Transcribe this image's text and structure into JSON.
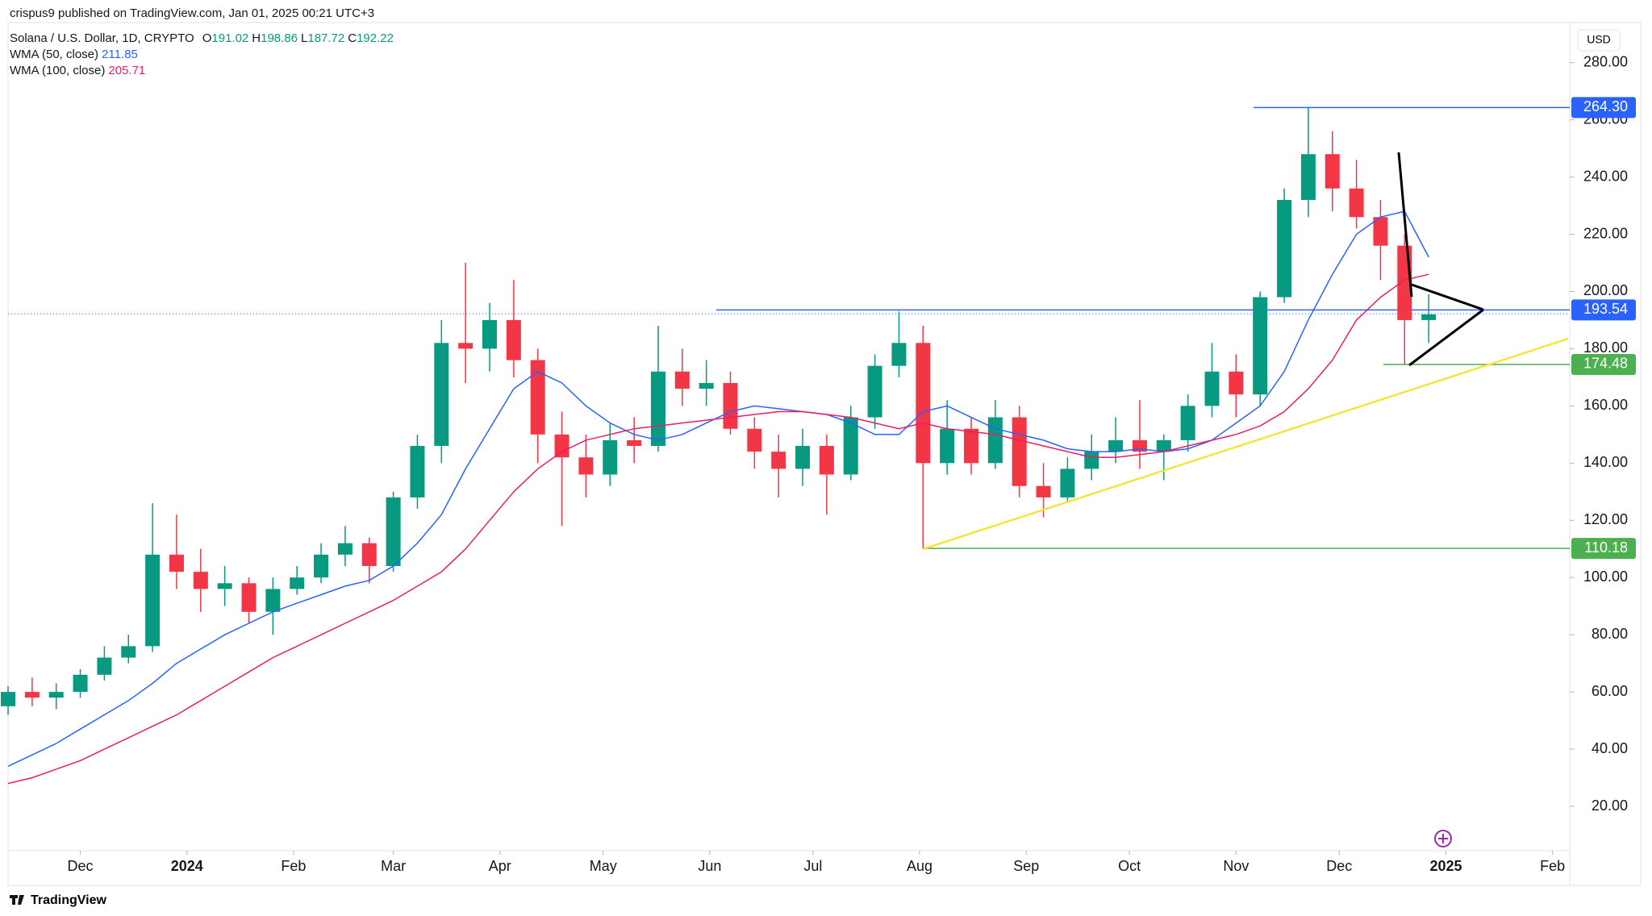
{
  "header": {
    "publisher": "crispus9 published on TradingView.com, Jan 01, 2025 00:21 UTC+3"
  },
  "chart_data": {
    "type": "candlestick",
    "title": "Solana / U.S. Dollar, 1D, CRYPTO",
    "ohlc_legend": [
      {
        "label": "O",
        "value": 191.02
      },
      {
        "label": "H",
        "value": 198.86
      },
      {
        "label": "L",
        "value": 187.72
      },
      {
        "label": "C",
        "value": 192.22
      }
    ],
    "currency": "USD",
    "up_color": "#089981",
    "down_color": "#f23645",
    "candles": {
      "x": [
        "2023-11-10",
        "2023-11-17",
        "2023-11-24",
        "2023-12-01",
        "2023-12-08",
        "2023-12-15",
        "2023-12-22",
        "2023-12-29",
        "2024-01-05",
        "2024-01-12",
        "2024-01-19",
        "2024-01-26",
        "2024-02-02",
        "2024-02-09",
        "2024-02-16",
        "2024-02-23",
        "2024-03-01",
        "2024-03-08",
        "2024-03-15",
        "2024-03-22",
        "2024-03-29",
        "2024-04-05",
        "2024-04-12",
        "2024-04-19",
        "2024-04-26",
        "2024-05-03",
        "2024-05-10",
        "2024-05-17",
        "2024-05-24",
        "2024-05-31",
        "2024-06-07",
        "2024-06-14",
        "2024-06-21",
        "2024-06-28",
        "2024-07-05",
        "2024-07-12",
        "2024-07-19",
        "2024-07-26",
        "2024-08-02",
        "2024-08-09",
        "2024-08-16",
        "2024-08-23",
        "2024-08-30",
        "2024-09-06",
        "2024-09-13",
        "2024-09-20",
        "2024-09-27",
        "2024-10-04",
        "2024-10-11",
        "2024-10-18",
        "2024-10-25",
        "2024-11-01",
        "2024-11-08",
        "2024-11-15",
        "2024-11-22",
        "2024-11-29",
        "2024-12-06",
        "2024-12-13",
        "2024-12-20",
        "2024-12-27"
      ],
      "open": [
        55,
        60,
        58,
        60,
        66,
        72,
        76,
        108,
        102,
        96,
        98,
        88,
        96,
        100,
        108,
        112,
        104,
        128,
        146,
        182,
        180,
        190,
        176,
        150,
        142,
        136,
        148,
        146,
        172,
        166,
        168,
        152,
        144,
        138,
        146,
        136,
        156,
        174,
        182,
        140,
        152,
        140,
        156,
        132,
        128,
        138,
        144,
        148,
        144,
        148,
        160,
        172,
        164,
        198,
        232,
        248,
        236,
        226,
        216,
        190
      ],
      "high": [
        62,
        65,
        63,
        68,
        76,
        80,
        126,
        122,
        110,
        104,
        100,
        100,
        104,
        112,
        118,
        114,
        130,
        150,
        190,
        210,
        196,
        204,
        180,
        158,
        150,
        154,
        156,
        188,
        180,
        176,
        172,
        156,
        150,
        152,
        150,
        160,
        178,
        193,
        188,
        162,
        156,
        162,
        160,
        140,
        142,
        150,
        156,
        162,
        150,
        164,
        182,
        178,
        200,
        236,
        264.3,
        256,
        246,
        232,
        220,
        199
      ],
      "low": [
        52,
        55,
        54,
        58,
        64,
        70,
        74,
        96,
        88,
        90,
        84,
        80,
        94,
        98,
        104,
        98,
        102,
        124,
        140,
        168,
        172,
        170,
        140,
        118,
        128,
        132,
        140,
        144,
        160,
        160,
        150,
        138,
        128,
        132,
        122,
        134,
        152,
        170,
        110,
        136,
        136,
        138,
        128,
        121,
        126,
        134,
        140,
        138,
        134,
        144,
        156,
        156,
        160,
        196,
        226,
        228,
        222,
        204,
        174.48,
        182
      ],
      "close": [
        60,
        58,
        60,
        66,
        72,
        76,
        108,
        102,
        96,
        98,
        88,
        96,
        100,
        108,
        112,
        104,
        128,
        146,
        182,
        180,
        190,
        176,
        150,
        142,
        136,
        148,
        146,
        172,
        166,
        168,
        152,
        144,
        138,
        146,
        136,
        156,
        174,
        182,
        140,
        152,
        140,
        156,
        132,
        128,
        138,
        144,
        148,
        144,
        148,
        160,
        172,
        164,
        198,
        232,
        248,
        236,
        226,
        216,
        190,
        192
      ]
    },
    "series": [
      {
        "name": "WMA (50, close)",
        "color": "#2962ff",
        "last_value": 211.85,
        "values": [
          34,
          38,
          42,
          47,
          52,
          57,
          63,
          70,
          75,
          80,
          84,
          88,
          91,
          94,
          97,
          99,
          104,
          112,
          122,
          138,
          152,
          166,
          172,
          168,
          160,
          154,
          150,
          148,
          150,
          154,
          158,
          160,
          159,
          158,
          157,
          154,
          150,
          150,
          158,
          160,
          156,
          152,
          150,
          148,
          145,
          144,
          144,
          145,
          144,
          145,
          148,
          154,
          160,
          172,
          190,
          206,
          220,
          226,
          228,
          212
        ]
      },
      {
        "name": "WMA (100, close)",
        "color": "#e91e63",
        "last_value": 205.71,
        "values": [
          28,
          30,
          33,
          36,
          40,
          44,
          48,
          52,
          57,
          62,
          67,
          72,
          76,
          80,
          84,
          88,
          92,
          97,
          102,
          110,
          120,
          130,
          138,
          144,
          148,
          150,
          152,
          153,
          154,
          155,
          156,
          157,
          158,
          158,
          157,
          156,
          154,
          152,
          154,
          152,
          151,
          150,
          148,
          146,
          144,
          142,
          142,
          143,
          144,
          146,
          148,
          150,
          153,
          158,
          166,
          176,
          190,
          198,
          204,
          206
        ]
      }
    ],
    "price_lines": [
      {
        "value": 264.3,
        "label": "264.30",
        "color": "#2962ff"
      },
      {
        "value": 193.54,
        "label": "193.54",
        "color": "#2962ff"
      },
      {
        "value": 174.48,
        "label": "174.48",
        "color": "#4caf50"
      },
      {
        "value": 110.18,
        "label": "110.18",
        "color": "#4caf50"
      }
    ],
    "ylim": [
      4.5,
      294
    ],
    "yticks": [
      {
        "value": 20,
        "label": "20.00"
      },
      {
        "value": 40,
        "label": "40.00"
      },
      {
        "value": 60,
        "label": "60.00"
      },
      {
        "value": 80,
        "label": "80.00"
      },
      {
        "value": 100,
        "label": "100.00"
      },
      {
        "value": 120,
        "label": "120.00"
      },
      {
        "value": 140,
        "label": "140.00"
      },
      {
        "value": 160,
        "label": "160.00"
      },
      {
        "value": 180,
        "label": "180.00"
      },
      {
        "value": 200,
        "label": "200.00"
      },
      {
        "value": 220,
        "label": "220.00"
      },
      {
        "value": 240,
        "label": "240.00"
      },
      {
        "value": 260,
        "label": "260.00"
      },
      {
        "value": 280,
        "label": "280.00"
      }
    ],
    "xlim": [
      "2023-11-10",
      "2025-02-06"
    ],
    "xticks": [
      {
        "value": "2023-12-01",
        "label": "Dec"
      },
      {
        "value": "2024-01-01",
        "label": "2024"
      },
      {
        "value": "2024-02-01",
        "label": "Feb"
      },
      {
        "value": "2024-03-01",
        "label": "Mar"
      },
      {
        "value": "2024-04-01",
        "label": "Apr"
      },
      {
        "value": "2024-05-01",
        "label": "May"
      },
      {
        "value": "2024-06-01",
        "label": "Jun"
      },
      {
        "value": "2024-07-01",
        "label": "Jul"
      },
      {
        "value": "2024-08-01",
        "label": "Aug"
      },
      {
        "value": "2024-09-01",
        "label": "Sep"
      },
      {
        "value": "2024-10-01",
        "label": "Oct"
      },
      {
        "value": "2024-11-01",
        "label": "Nov"
      },
      {
        "value": "2024-12-01",
        "label": "Dec"
      },
      {
        "value": "2025-01-01",
        "label": "2025"
      },
      {
        "value": "2025-02-01",
        "label": "Feb"
      }
    ]
  },
  "footer": {
    "brand": "TradingView"
  }
}
